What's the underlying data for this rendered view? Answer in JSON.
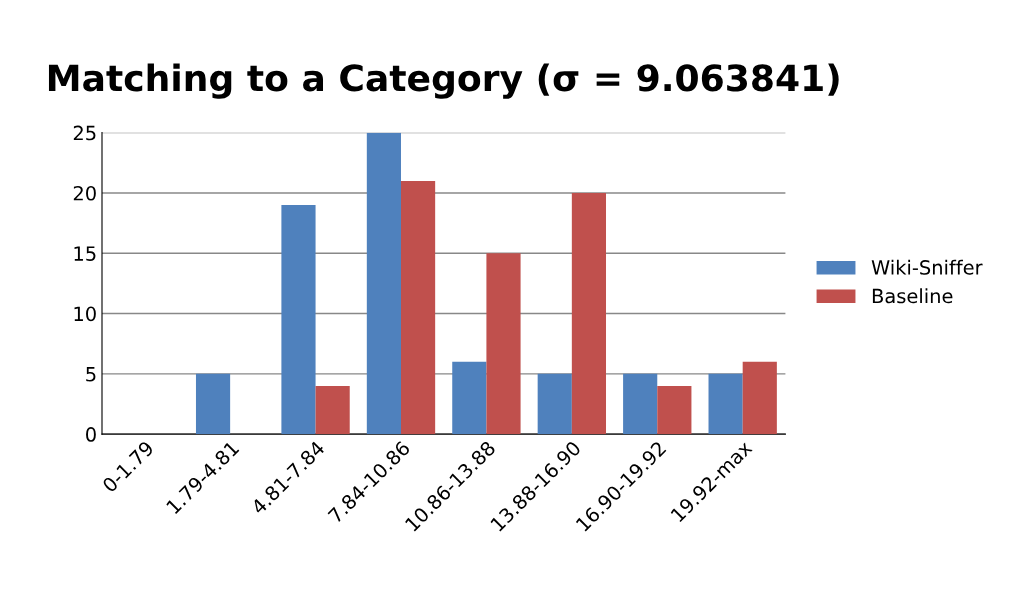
{
  "chart_data": {
    "type": "bar",
    "title": "Matching to a Category (σ = 9.063841)",
    "categories": [
      "0-1.79",
      "1.79-4.81",
      "4.81-7.84",
      "7.84-10.86",
      "10.86-13.88",
      "13.88-16.90",
      "16.90-19.92",
      "19.92-max"
    ],
    "series": [
      {
        "name": "Wiki-Sniffer",
        "color": "#4f81bd",
        "values": [
          0,
          5,
          19,
          25,
          6,
          5,
          5,
          5
        ]
      },
      {
        "name": "Baseline",
        "color": "#c0504d",
        "values": [
          0,
          0,
          4,
          21,
          15,
          20,
          4,
          6
        ]
      }
    ],
    "ylim": [
      0,
      25
    ],
    "yticks": [
      0,
      5,
      10,
      15,
      20,
      25
    ],
    "grid": "y",
    "legend": "right"
  }
}
